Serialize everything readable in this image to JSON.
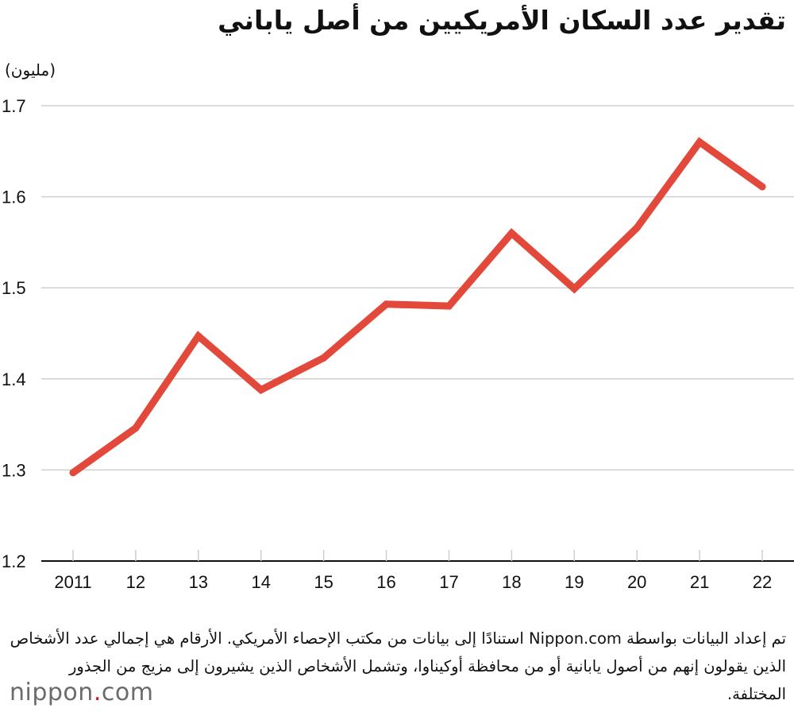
{
  "title": "تقدير عدد السكان الأمريكيين من أصل ياباني",
  "unit_label": "(مليون)",
  "footnote": "تم إعداد البيانات بواسطة Nippon.com استنادًا إلى بيانات من مكتب الإحصاء الأمريكي. الأرقام هي إجمالي عدد الأشخاص الذين يقولون إنهم من أصول يابانية أو من محافظة أوكيناوا، وتشمل الأشخاص الذين يشيرون إلى مزيج من الجذور المختلفة.",
  "logo": {
    "text_before": "nippon",
    "dot": ".",
    "text_after": "com"
  },
  "colors": {
    "line": "#e2493b",
    "grid": "#cfcfcf",
    "axis": "#111111",
    "logo_dot": "#d9161e"
  },
  "chart_data": {
    "type": "line",
    "title": "تقدير عدد السكان الأمريكيين من أصل ياباني",
    "ylabel": "(مليون)",
    "xlabel": "",
    "categories": [
      "2011",
      "12",
      "13",
      "14",
      "15",
      "16",
      "17",
      "18",
      "19",
      "20",
      "21",
      "22"
    ],
    "values": [
      1.297,
      1.346,
      1.447,
      1.388,
      1.423,
      1.482,
      1.48,
      1.56,
      1.499,
      1.566,
      1.66,
      1.611
    ],
    "ylim": [
      1.2,
      1.7
    ],
    "yticks": [
      1.2,
      1.3,
      1.4,
      1.5,
      1.6,
      1.7
    ],
    "ytick_labels": [
      "1.2",
      "1.3",
      "1.4",
      "1.5",
      "1.6",
      "1.7"
    ],
    "grid": true,
    "legend": "none"
  }
}
